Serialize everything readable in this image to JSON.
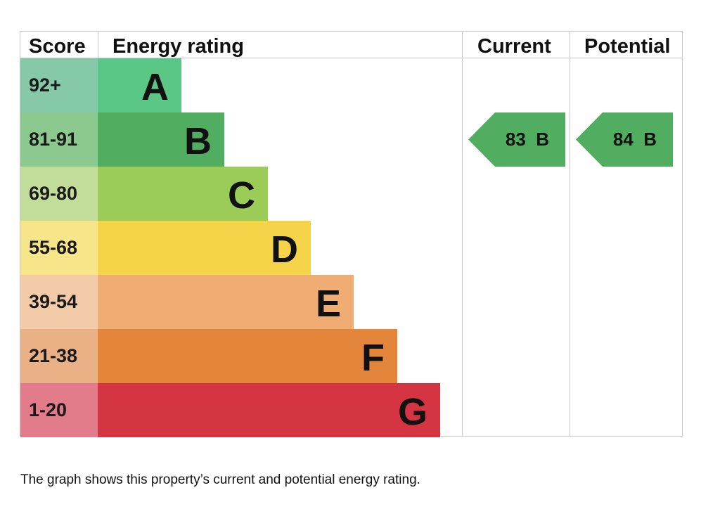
{
  "chart_data": {
    "type": "table",
    "headers": {
      "score": "Score",
      "energy_rating": "Energy rating",
      "current": "Current",
      "potential": "Potential"
    },
    "bands": [
      {
        "score": "92+",
        "letter": "A",
        "color": "#5ac787",
        "score_color": "#86c9a8"
      },
      {
        "score": "81-91",
        "letter": "B",
        "color": "#51ad60",
        "score_color": "#8bc98f"
      },
      {
        "score": "69-80",
        "letter": "C",
        "color": "#9ccc58",
        "score_color": "#c2dd99"
      },
      {
        "score": "55-68",
        "letter": "D",
        "color": "#f5d44a",
        "score_color": "#f7e589"
      },
      {
        "score": "39-54",
        "letter": "E",
        "color": "#efad74",
        "score_color": "#f3cba8"
      },
      {
        "score": "21-38",
        "letter": "F",
        "color": "#e3853b",
        "score_color": "#eab086"
      },
      {
        "score": "1-20",
        "letter": "G",
        "color": "#d53442",
        "score_color": "#e27b8a"
      }
    ],
    "current": {
      "value": 83,
      "band": "B",
      "label": "83  B",
      "color": "#51ad60"
    },
    "potential": {
      "value": 84,
      "band": "B",
      "label": "84  B",
      "color": "#51ad60"
    }
  },
  "caption": "The graph shows this property’s current and potential energy rating."
}
